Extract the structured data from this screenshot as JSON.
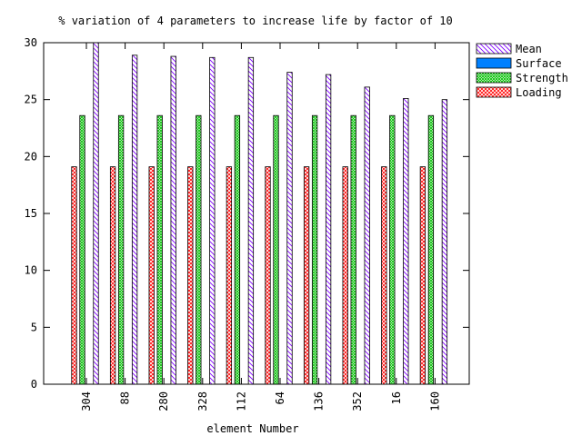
{
  "chart_data": {
    "type": "bar",
    "title": "% variation of 4 parameters to increase life by factor of 10",
    "xlabel": "element Number",
    "ylabel": "",
    "ylim": [
      0,
      30
    ],
    "yticks": [
      0,
      5,
      10,
      15,
      20,
      25,
      30
    ],
    "categories": [
      "304",
      "88",
      "280",
      "328",
      "112",
      "64",
      "136",
      "352",
      "16",
      "160"
    ],
    "legend_position": "top-right, outside plot",
    "grid": false,
    "series": [
      {
        "name": "Loading",
        "pattern": "crosshatch",
        "color": "#ff0000",
        "values": [
          19.1,
          19.1,
          19.1,
          19.1,
          19.1,
          19.1,
          19.1,
          19.1,
          19.1,
          19.1
        ]
      },
      {
        "name": "Strength",
        "pattern": "checker",
        "color": "#00c000",
        "values": [
          23.6,
          23.6,
          23.6,
          23.6,
          23.6,
          23.6,
          23.6,
          23.6,
          23.6,
          23.6
        ]
      },
      {
        "name": "Surface",
        "pattern": "solid",
        "color": "#0080ff",
        "values": [
          0,
          0,
          0,
          0,
          0,
          0,
          0,
          0,
          0,
          0
        ]
      },
      {
        "name": "Mean",
        "pattern": "diagonal",
        "color": "#8000ff",
        "values": [
          30.0,
          28.9,
          28.8,
          28.7,
          28.7,
          27.4,
          27.2,
          26.1,
          25.1,
          25.0
        ]
      }
    ],
    "legend_order": [
      "Mean",
      "Surface",
      "Strength",
      "Loading"
    ]
  }
}
